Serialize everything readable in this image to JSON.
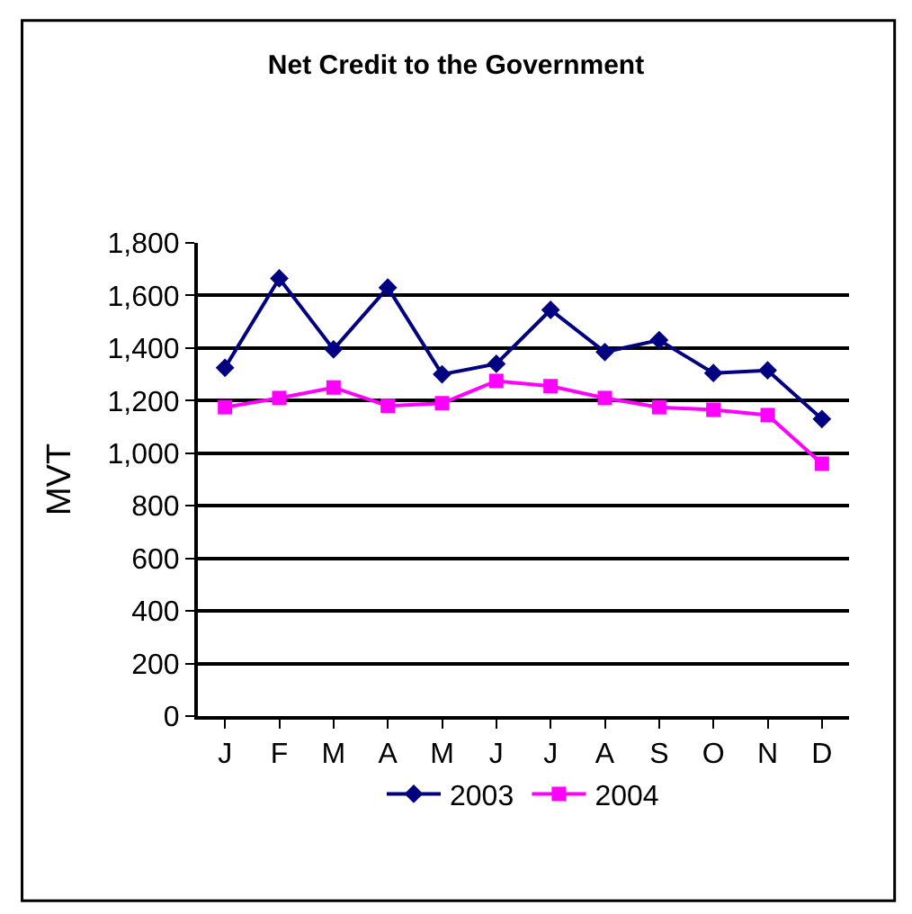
{
  "chart_data": {
    "type": "line",
    "title": "Net Credit to the Government",
    "ylabel": "MVT",
    "categories": [
      "J",
      "F",
      "M",
      "A",
      "M",
      "J",
      "J",
      "A",
      "S",
      "O",
      "N",
      "D"
    ],
    "series": [
      {
        "name": "2003",
        "color": "#000080",
        "marker": "diamond",
        "values": [
          1325,
          1665,
          1395,
          1630,
          1300,
          1340,
          1545,
          1385,
          1430,
          1305,
          1315,
          1130
        ]
      },
      {
        "name": "2004",
        "color": "#ff00ff",
        "marker": "square",
        "values": [
          1175,
          1210,
          1250,
          1180,
          1190,
          1275,
          1255,
          1210,
          1175,
          1165,
          1145,
          960
        ]
      }
    ],
    "ylim": [
      0,
      1800
    ],
    "yticks": [
      {
        "value": 0,
        "label": "0"
      },
      {
        "value": 200,
        "label": "200"
      },
      {
        "value": 400,
        "label": "400"
      },
      {
        "value": 600,
        "label": "600"
      },
      {
        "value": 800,
        "label": "800"
      },
      {
        "value": 1000,
        "label": "1,000"
      },
      {
        "value": 1200,
        "label": "1,200"
      },
      {
        "value": 1400,
        "label": "1,400"
      },
      {
        "value": 1600,
        "label": "1,600"
      },
      {
        "value": 1800,
        "label": "1,800"
      }
    ],
    "grid": "y",
    "legend": "bottom",
    "line_style": "solid"
  }
}
